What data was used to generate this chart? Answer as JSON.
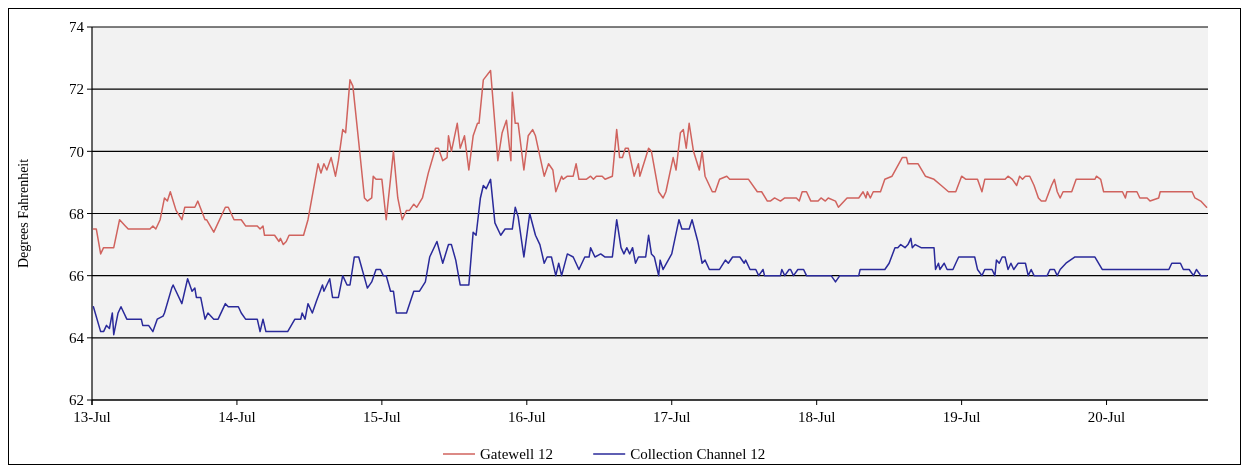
{
  "chart_data": {
    "type": "line",
    "ylabel": "Degrees Fahrenheit",
    "xlim": [
      "--07-13T00:00",
      "--07-20T16:48"
    ],
    "xticks": [
      {
        "value": "--07-13",
        "label": "13-Jul"
      },
      {
        "value": "--07-14",
        "label": "14-Jul"
      },
      {
        "value": "--07-15",
        "label": "15-Jul"
      },
      {
        "value": "--07-16",
        "label": "16-Jul"
      },
      {
        "value": "--07-17",
        "label": "17-Jul"
      },
      {
        "value": "--07-18",
        "label": "18-Jul"
      },
      {
        "value": "--07-19",
        "label": "19-Jul"
      },
      {
        "value": "--07-20",
        "label": "20-Jul"
      }
    ],
    "ylim": [
      62,
      74
    ],
    "yticks": [
      62,
      64,
      66,
      68,
      70,
      72,
      74
    ],
    "grid": "y",
    "legend": "bottom",
    "marker": "none",
    "line_style": "solid",
    "series": [
      {
        "name": "Gatewell 12",
        "color": "#d0635e",
        "x": [
          "--07-13T00:14",
          "--07-13T00:43",
          "--07-13T01:26",
          "--07-13T01:55",
          "--07-13T03:36",
          "--07-13T04:34",
          "--07-13T05:31",
          "--07-13T06:00",
          "--07-13T09:36",
          "--07-13T10:05",
          "--07-13T10:34",
          "--07-13T11:17",
          "--07-13T12:00",
          "--07-13T12:29",
          "--07-13T12:58",
          "--07-13T13:55",
          "--07-13T14:53",
          "--07-13T15:22",
          "--07-13T17:02",
          "--07-13T17:31",
          "--07-13T18:43",
          "--07-13T18:58",
          "--07-13T20:10",
          "--07-13T22:05",
          "--07-13T22:34",
          "--07-13T23:31",
          "--07-14T00:43",
          "--07-14T01:26",
          "--07-14T03:22",
          "--07-14T03:50",
          "--07-14T04:19",
          "--07-14T04:34",
          "--07-14T06:14",
          "--07-14T06:58",
          "--07-14T07:12",
          "--07-14T07:41",
          "--07-14T08:10",
          "--07-14T08:38",
          "--07-14T11:02",
          "--07-14T11:46",
          "--07-14T13:26",
          "--07-14T13:55",
          "--07-14T14:24",
          "--07-14T14:53",
          "--07-14T15:36",
          "--07-14T16:19",
          "--07-14T16:48",
          "--07-14T17:31",
          "--07-14T18:00",
          "--07-14T18:43",
          "--07-14T19:12",
          "--07-14T20:10",
          "--07-14T21:07",
          "--07-14T21:36",
          "--07-14T22:19",
          "--07-14T22:34",
          "--07-14T23:02",
          "--07-15T00:00",
          "--07-15T00:43",
          "--07-15T01:55",
          "--07-15T02:38",
          "--07-15T03:22",
          "--07-15T04:05",
          "--07-15T04:34",
          "--07-15T05:17",
          "--07-15T05:46",
          "--07-15T06:43",
          "--07-15T07:41",
          "--07-15T08:53",
          "--07-15T09:22",
          "--07-15T10:05",
          "--07-15T10:48",
          "--07-15T11:02",
          "--07-15T11:31",
          "--07-15T12:29",
          "--07-15T12:58",
          "--07-15T13:41",
          "--07-15T14:24",
          "--07-15T15:07",
          "--07-15T15:50",
          "--07-15T16:05",
          "--07-15T16:48",
          "--07-15T18:00",
          "--07-15T19:12",
          "--07-15T19:55",
          "--07-15T20:38",
          "--07-15T21:22",
          "--07-15T21:36",
          "--07-15T22:05",
          "--07-15T22:34",
          "--07-15T23:31",
          "--07-16T00:14",
          "--07-16T00:58",
          "--07-16T01:26",
          "--07-16T02:53",
          "--07-16T03:36",
          "--07-16T04:19",
          "--07-16T04:48",
          "--07-16T05:46",
          "--07-16T06:00",
          "--07-16T06:43",
          "--07-16T07:41",
          "--07-16T08:10",
          "--07-16T08:38",
          "--07-16T09:50",
          "--07-16T10:34",
          "--07-16T11:02",
          "--07-16T11:31",
          "--07-16T12:29",
          "--07-16T12:58",
          "--07-16T14:10",
          "--07-16T14:53",
          "--07-16T15:22",
          "--07-16T15:50",
          "--07-16T16:19",
          "--07-16T16:48",
          "--07-16T17:46",
          "--07-16T18:29",
          "--07-16T18:43",
          "--07-16T20:10",
          "--07-16T20:38",
          "--07-16T21:50",
          "--07-16T22:34",
          "--07-16T23:02",
          "--07-17T00:14",
          "--07-17T00:43",
          "--07-17T01:26",
          "--07-17T01:55",
          "--07-17T02:24",
          "--07-17T02:53",
          "--07-17T03:36",
          "--07-17T04:34",
          "--07-17T05:02",
          "--07-17T05:31",
          "--07-17T06:43",
          "--07-17T07:12",
          "--07-17T07:55",
          "--07-17T09:07",
          "--07-17T09:36",
          "--07-17T12:43",
          "--07-17T14:10",
          "--07-17T14:53",
          "--07-17T15:50",
          "--07-17T16:19",
          "--07-17T17:02",
          "--07-17T18:00",
          "--07-17T18:43",
          "--07-17T20:38",
          "--07-17T21:07",
          "--07-17T21:36",
          "--07-17T22:19",
          "--07-17T23:02",
          "--07-18T00:14",
          "--07-18T00:43",
          "--07-18T01:26",
          "--07-18T01:55",
          "--07-18T03:07",
          "--07-18T03:36",
          "--07-18T05:02",
          "--07-18T06:58",
          "--07-18T07:41",
          "--07-18T08:10",
          "--07-18T08:24",
          "--07-18T08:53",
          "--07-18T09:22",
          "--07-18T10:34",
          "--07-18T11:17",
          "--07-18T12:29",
          "--07-18T14:10",
          "--07-18T14:53",
          "--07-18T15:07",
          "--07-18T16:48",
          "--07-18T18:00",
          "--07-18T19:26",
          "--07-18T20:38",
          "--07-18T21:50",
          "--07-18T23:02",
          "--07-19T00:00",
          "--07-19T00:43",
          "--07-19T02:38",
          "--07-19T03:22",
          "--07-19T03:50",
          "--07-19T07:12",
          "--07-19T07:41",
          "--07-19T08:24",
          "--07-19T09:07",
          "--07-19T09:36",
          "--07-19T10:05",
          "--07-19T10:34",
          "--07-19T11:17",
          "--07-19T12:00",
          "--07-19T12:43",
          "--07-19T13:12",
          "--07-19T13:55",
          "--07-19T14:53",
          "--07-19T15:22",
          "--07-19T15:50",
          "--07-19T16:19",
          "--07-19T16:48",
          "--07-19T18:14",
          "--07-19T18:58",
          "--07-19T22:05",
          "--07-19T22:19",
          "--07-19T23:02",
          "--07-19T23:31",
          "--07-20T02:38",
          "--07-20T03:07",
          "--07-20T03:22",
          "--07-20T05:02",
          "--07-20T05:31",
          "--07-20T06:43",
          "--07-20T07:12",
          "--07-20T08:38",
          "--07-20T08:53",
          "--07-20T14:10",
          "--07-20T14:38",
          "--07-20T15:36",
          "--07-20T16:34"
        ],
        "values": [
          67.5,
          67.5,
          66.7,
          66.9,
          66.9,
          67.8,
          67.6,
          67.5,
          67.5,
          67.6,
          67.5,
          67.8,
          68.5,
          68.4,
          68.7,
          68.1,
          67.8,
          68.2,
          68.2,
          68.4,
          67.8,
          67.8,
          67.4,
          68.2,
          68.2,
          67.8,
          67.8,
          67.6,
          67.6,
          67.5,
          67.6,
          67.3,
          67.3,
          67.1,
          67.2,
          67.0,
          67.1,
          67.3,
          67.3,
          67.8,
          69.6,
          69.3,
          69.6,
          69.4,
          69.8,
          69.2,
          69.7,
          70.7,
          70.6,
          72.3,
          72.1,
          70.3,
          68.5,
          68.4,
          68.5,
          69.2,
          69.1,
          69.1,
          67.8,
          70.0,
          68.5,
          67.8,
          68.1,
          68.1,
          68.3,
          68.2,
          68.5,
          69.3,
          70.1,
          70.1,
          69.7,
          69.8,
          70.5,
          70.0,
          70.9,
          70.1,
          70.5,
          69.4,
          70.5,
          70.9,
          70.9,
          72.3,
          72.6,
          69.7,
          70.6,
          71.0,
          69.7,
          71.9,
          70.9,
          70.9,
          69.4,
          70.5,
          70.7,
          70.5,
          69.2,
          69.6,
          69.4,
          68.7,
          69.2,
          69.1,
          69.2,
          69.2,
          69.6,
          69.1,
          69.1,
          69.2,
          69.1,
          69.2,
          69.2,
          69.1,
          69.2,
          70.7,
          69.8,
          69.8,
          70.1,
          70.1,
          69.2,
          69.6,
          69.2,
          70.1,
          70.0,
          68.7,
          68.5,
          68.7,
          69.8,
          69.4,
          70.6,
          70.7,
          70.1,
          70.9,
          70.0,
          69.4,
          70.0,
          69.2,
          68.7,
          68.7,
          69.1,
          69.2,
          69.1,
          69.1,
          68.7,
          68.7,
          68.4,
          68.4,
          68.5,
          68.4,
          68.5,
          68.5,
          68.4,
          68.7,
          68.7,
          68.4,
          68.4,
          68.5,
          68.4,
          68.5,
          68.4,
          68.2,
          68.5,
          68.5,
          68.7,
          68.5,
          68.7,
          68.5,
          68.7,
          68.7,
          69.1,
          69.2,
          69.8,
          69.8,
          69.6,
          69.6,
          69.2,
          69.1,
          68.9,
          68.7,
          68.7,
          69.2,
          69.1,
          69.1,
          68.7,
          69.1,
          69.1,
          69.2,
          69.1,
          68.9,
          69.2,
          69.1,
          69.2,
          69.2,
          68.9,
          68.5,
          68.4,
          68.4,
          68.9,
          69.1,
          68.7,
          68.5,
          68.7,
          68.7,
          69.1,
          69.1,
          69.2,
          69.1,
          68.7,
          68.7,
          68.5,
          68.7,
          68.7,
          68.5,
          68.5,
          68.4,
          68.5,
          68.7,
          68.7,
          68.5,
          68.4,
          68.2
        ]
      },
      {
        "name": "Collection Channel 12",
        "color": "#2a2a9a",
        "x": [
          "--07-13T00:14",
          "--07-13T01:26",
          "--07-13T01:55",
          "--07-13T02:24",
          "--07-13T02:53",
          "--07-13T03:22",
          "--07-13T03:36",
          "--07-13T04:19",
          "--07-13T04:48",
          "--07-13T05:46",
          "--07-13T08:10",
          "--07-13T08:24",
          "--07-13T09:22",
          "--07-13T10:05",
          "--07-13T10:48",
          "--07-13T11:46",
          "--07-13T12:00",
          "--07-13T13:12",
          "--07-13T13:26",
          "--07-13T13:55",
          "--07-13T14:53",
          "--07-13T15:50",
          "--07-13T16:34",
          "--07-13T17:02",
          "--07-13T17:17",
          "--07-13T18:00",
          "--07-13T18:43",
          "--07-13T19:12",
          "--07-13T20:10",
          "--07-13T20:53",
          "--07-13T22:05",
          "--07-13T22:34",
          "--07-14T00:14",
          "--07-14T00:43",
          "--07-14T01:26",
          "--07-14T03:22",
          "--07-14T03:50",
          "--07-14T04:19",
          "--07-14T04:48",
          "--07-14T08:24",
          "--07-14T09:36",
          "--07-14T10:34",
          "--07-14T10:48",
          "--07-14T11:17",
          "--07-14T11:46",
          "--07-14T12:29",
          "--07-14T13:12",
          "--07-14T14:10",
          "--07-14T14:24",
          "--07-14T15:22",
          "--07-14T15:50",
          "--07-14T16:48",
          "--07-14T17:31",
          "--07-14T18:14",
          "--07-14T18:43",
          "--07-14T19:26",
          "--07-14T20:10",
          "--07-14T21:36",
          "--07-14T22:19",
          "--07-14T23:02",
          "--07-14T23:46",
          "--07-15T00:14",
          "--07-15T00:43",
          "--07-15T01:26",
          "--07-15T01:55",
          "--07-15T02:24",
          "--07-15T04:05",
          "--07-15T05:17",
          "--07-15T06:14",
          "--07-15T07:12",
          "--07-15T07:55",
          "--07-15T09:07",
          "--07-15T10:05",
          "--07-15T11:02",
          "--07-15T11:31",
          "--07-15T12:14",
          "--07-15T12:58",
          "--07-15T13:41",
          "--07-15T14:24",
          "--07-15T15:07",
          "--07-15T15:36",
          "--07-15T16:19",
          "--07-15T16:48",
          "--07-15T17:17",
          "--07-15T18:00",
          "--07-15T18:43",
          "--07-15T19:41",
          "--07-15T20:24",
          "--07-15T21:36",
          "--07-15T22:05",
          "--07-15T22:34",
          "--07-15T23:31",
          "--07-16T00:29",
          "--07-16T01:26",
          "--07-16T02:10",
          "--07-16T02:53",
          "--07-16T03:22",
          "--07-16T04:05",
          "--07-16T04:48",
          "--07-16T05:17",
          "--07-16T05:46",
          "--07-16T06:43",
          "--07-16T07:41",
          "--07-16T08:38",
          "--07-16T09:36",
          "--07-16T10:19",
          "--07-16T10:34",
          "--07-16T11:17",
          "--07-16T12:14",
          "--07-16T12:58",
          "--07-16T14:10",
          "--07-16T14:53",
          "--07-16T15:36",
          "--07-16T16:05",
          "--07-16T16:34",
          "--07-16T17:02",
          "--07-16T17:31",
          "--07-16T18:00",
          "--07-16T18:29",
          "--07-16T19:41",
          "--07-16T20:10",
          "--07-16T20:38",
          "--07-16T21:07",
          "--07-16T21:50",
          "--07-16T22:05",
          "--07-16T22:34",
          "--07-17T00:00",
          "--07-17T01:12",
          "--07-17T01:41",
          "--07-17T02:53",
          "--07-17T03:22",
          "--07-17T04:19",
          "--07-17T05:02",
          "--07-17T05:31",
          "--07-17T06:14",
          "--07-17T07:55",
          "--07-17T08:53",
          "--07-17T09:22",
          "--07-17T10:05",
          "--07-17T11:17",
          "--07-17T12:00",
          "--07-17T12:14",
          "--07-17T12:58",
          "--07-17T13:55",
          "--07-17T14:24",
          "--07-17T15:07",
          "--07-17T15:22",
          "--07-17T18:00",
          "--07-17T18:14",
          "--07-17T18:43",
          "--07-17T19:26",
          "--07-17T19:41",
          "--07-17T20:10",
          "--07-17T20:53",
          "--07-17T21:50",
          "--07-17T22:19",
          "--07-18T02:24",
          "--07-18T03:07",
          "--07-18T03:50",
          "--07-18T06:58",
          "--07-18T07:12",
          "--07-18T11:17",
          "--07-18T12:00",
          "--07-18T12:58",
          "--07-18T13:26",
          "--07-18T13:55",
          "--07-18T14:38",
          "--07-18T15:07",
          "--07-18T15:36",
          "--07-18T15:50",
          "--07-18T16:19",
          "--07-18T17:17",
          "--07-18T19:26",
          "--07-18T19:41",
          "--07-18T20:10",
          "--07-18T20:24",
          "--07-18T21:07",
          "--07-18T21:36",
          "--07-18T22:34",
          "--07-18T23:02",
          "--07-18T23:31",
          "--07-19T02:10",
          "--07-19T02:38",
          "--07-19T03:22",
          "--07-19T03:50",
          "--07-19T05:02",
          "--07-19T05:31",
          "--07-19T05:46",
          "--07-19T06:14",
          "--07-19T06:43",
          "--07-19T07:12",
          "--07-19T07:41",
          "--07-19T08:10",
          "--07-19T08:38",
          "--07-19T09:22",
          "--07-19T10:34",
          "--07-19T11:02",
          "--07-19T11:31",
          "--07-19T12:00",
          "--07-19T14:10",
          "--07-19T14:38",
          "--07-19T15:22",
          "--07-19T15:50",
          "--07-19T16:19",
          "--07-19T17:17",
          "--07-19T18:43",
          "--07-19T22:05",
          "--07-19T23:17",
          "--07-20T10:19",
          "--07-20T10:48",
          "--07-20T12:14",
          "--07-20T12:43",
          "--07-20T13:41",
          "--07-20T14:24",
          "--07-20T14:53",
          "--07-20T15:36",
          "--07-20T16:34"
        ],
        "values": [
          65.0,
          64.2,
          64.2,
          64.4,
          64.3,
          64.8,
          64.1,
          64.8,
          65.0,
          64.6,
          64.6,
          64.4,
          64.4,
          64.2,
          64.6,
          64.7,
          64.8,
          65.6,
          65.7,
          65.5,
          65.1,
          65.9,
          65.5,
          65.6,
          65.3,
          65.3,
          64.6,
          64.8,
          64.6,
          64.6,
          65.1,
          65.0,
          65.0,
          64.8,
          64.6,
          64.6,
          64.2,
          64.6,
          64.2,
          64.2,
          64.6,
          64.6,
          64.8,
          64.6,
          65.1,
          64.8,
          65.2,
          65.7,
          65.5,
          65.9,
          65.3,
          65.3,
          66.0,
          65.7,
          65.7,
          66.6,
          66.6,
          65.6,
          65.8,
          66.2,
          66.2,
          66.0,
          66.0,
          65.5,
          65.5,
          64.8,
          64.8,
          65.5,
          65.5,
          65.8,
          66.6,
          67.1,
          66.4,
          67.0,
          67.0,
          66.5,
          65.7,
          65.7,
          65.7,
          67.4,
          67.3,
          68.5,
          68.9,
          68.8,
          69.1,
          67.7,
          67.3,
          67.5,
          67.5,
          68.2,
          67.9,
          66.6,
          68.0,
          67.3,
          67.0,
          66.4,
          66.6,
          66.6,
          66.0,
          66.4,
          66.0,
          66.7,
          66.6,
          66.2,
          66.6,
          66.6,
          66.9,
          66.6,
          66.7,
          66.6,
          66.6,
          67.8,
          66.9,
          66.7,
          66.9,
          66.7,
          66.9,
          66.4,
          66.6,
          66.6,
          67.3,
          66.7,
          66.6,
          66.0,
          66.5,
          66.2,
          66.7,
          67.8,
          67.5,
          67.5,
          67.8,
          67.1,
          66.4,
          66.5,
          66.2,
          66.2,
          66.5,
          66.4,
          66.6,
          66.6,
          66.4,
          66.5,
          66.2,
          66.2,
          66.0,
          66.2,
          66.0,
          66.0,
          66.2,
          66.0,
          66.2,
          66.2,
          66.0,
          66.2,
          66.2,
          66.0,
          66.0,
          65.8,
          66.0,
          66.0,
          66.2,
          66.2,
          66.4,
          66.9,
          66.9,
          67.0,
          66.9,
          67.0,
          67.2,
          66.9,
          67.0,
          66.9,
          66.9,
          66.2,
          66.4,
          66.2,
          66.4,
          66.2,
          66.2,
          66.4,
          66.6,
          66.6,
          66.2,
          66.0,
          66.2,
          66.2,
          66.0,
          66.5,
          66.4,
          66.6,
          66.6,
          66.2,
          66.4,
          66.2,
          66.4,
          66.4,
          66.0,
          66.2,
          66.0,
          66.0,
          66.2,
          66.2,
          66.0,
          66.2,
          66.4,
          66.6,
          66.6,
          66.2,
          66.2,
          66.4,
          66.4,
          66.2,
          66.2,
          66.0,
          66.2,
          66.0,
          66.0
        ]
      }
    ]
  }
}
